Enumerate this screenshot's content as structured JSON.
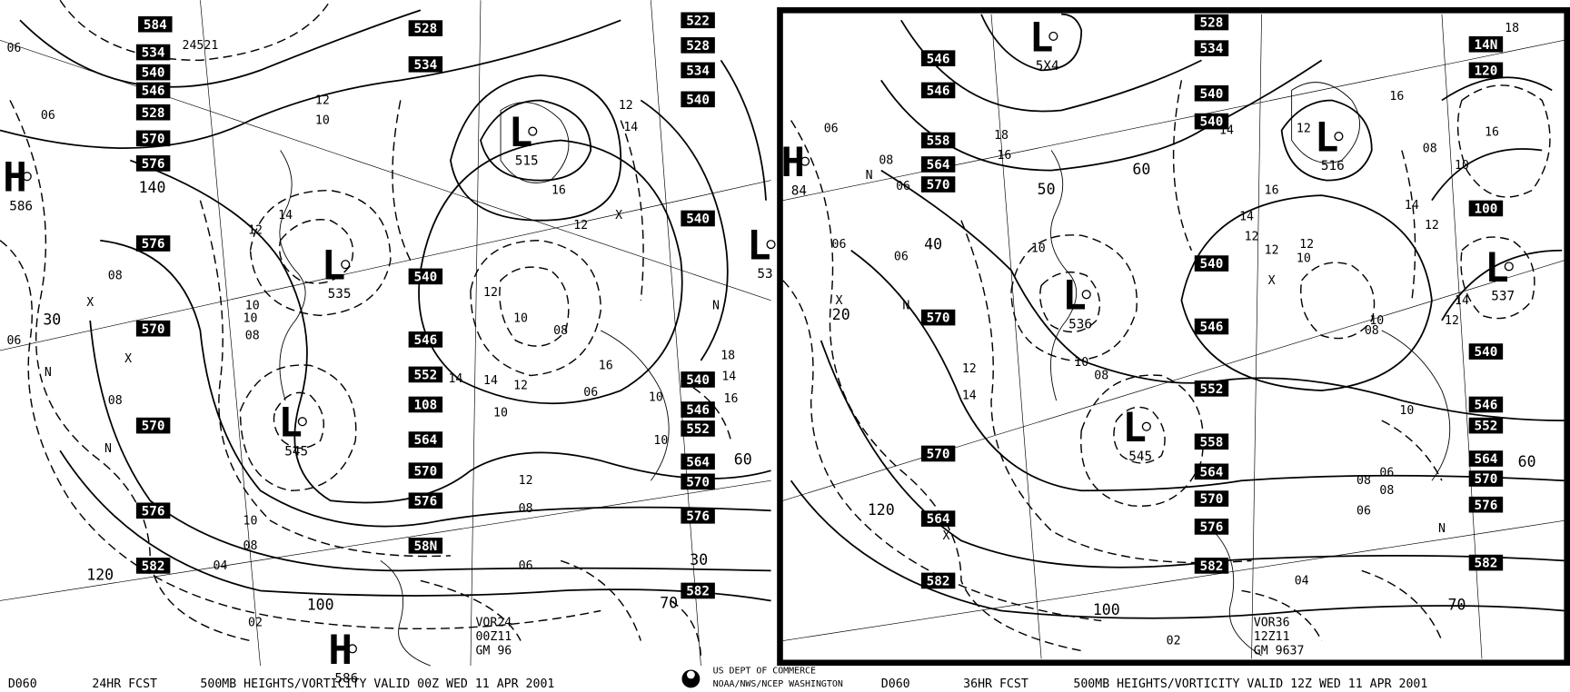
{
  "left_panel": {
    "height_labels": [
      "584",
      "534",
      "540",
      "546",
      "528",
      "570",
      "576",
      "576",
      "570",
      "570",
      "576",
      "582",
      "528",
      "534",
      "522",
      "528",
      "534",
      "540",
      "540",
      "540",
      "546",
      "552",
      "108",
      "564",
      "570",
      "576",
      "58N",
      "540",
      "546",
      "552",
      "564",
      "570",
      "576",
      "582"
    ],
    "centers": [
      {
        "symbol": "H",
        "value": "586"
      },
      {
        "symbol": "L",
        "value": "535"
      },
      {
        "symbol": "L",
        "value": "515"
      },
      {
        "symbol": "L",
        "value": "545"
      },
      {
        "symbol": "L",
        "value": "53"
      },
      {
        "symbol": "H",
        "value": "586"
      }
    ],
    "small_labels": [
      "06",
      "06",
      "08",
      "06",
      "08",
      "10",
      "12",
      "10",
      "08",
      "14",
      "12",
      "10",
      "14",
      "16",
      "12",
      "14",
      "16",
      "12",
      "10",
      "08",
      "10",
      "12",
      "14",
      "12",
      "10",
      "08",
      "06",
      "04",
      "02",
      "X",
      "X",
      "N",
      "N",
      "X",
      "N",
      "18",
      "16",
      "14",
      "10",
      "06",
      "08",
      "10",
      "12",
      "24521"
    ],
    "isotach_labels": [
      "140",
      "120",
      "100",
      "30",
      "70",
      "60",
      "30"
    ],
    "stamp": [
      "VOR24",
      "00Z11",
      "GM 96"
    ]
  },
  "right_panel": {
    "height_labels": [
      "528",
      "534",
      "546",
      "546",
      "558",
      "564",
      "570",
      "540",
      "540",
      "540",
      "546",
      "552",
      "558",
      "564",
      "570",
      "576",
      "582",
      "570",
      "570",
      "564",
      "582",
      "14N",
      "120",
      "100",
      "540",
      "546",
      "552",
      "564",
      "570",
      "576",
      "582"
    ],
    "centers": [
      {
        "symbol": "L",
        "value": "5X4"
      },
      {
        "symbol": "L",
        "value": "516"
      },
      {
        "symbol": "L",
        "value": "536"
      },
      {
        "symbol": "L",
        "value": "545"
      },
      {
        "symbol": "L",
        "value": "537"
      },
      {
        "symbol": "H",
        "value": "84"
      }
    ],
    "small_labels": [
      "06",
      "06",
      "08",
      "06",
      "06",
      "10",
      "12",
      "16",
      "14",
      "12",
      "10",
      "08",
      "12",
      "14",
      "16",
      "18",
      "14",
      "12",
      "10",
      "08",
      "12",
      "10",
      "08",
      "06",
      "04",
      "02",
      "X",
      "X",
      "N",
      "N",
      "X",
      "N",
      "16",
      "14",
      "12",
      "10",
      "08",
      "06",
      "08",
      "10",
      "12",
      "14",
      "16",
      "18"
    ],
    "isotach_labels": [
      "60",
      "50",
      "40",
      "20",
      "120",
      "100",
      "70",
      "60"
    ],
    "stamp": [
      "VOR36",
      "12Z11",
      "GM 9637"
    ]
  },
  "footer": {
    "left_code": "D060",
    "left_forecast": "24HR FCST",
    "left_title": "500MB HEIGHTS/VORTICITY VALID 00Z WED 11 APR 2001",
    "agency_line1": "US DEPT OF COMMERCE",
    "agency_line2": "NOAA/NWS/NCEP WASHINGTON",
    "right_code": "D060",
    "right_forecast": "36HR FCST",
    "right_title": "500MB HEIGHTS/VORTICITY VALID 12Z WED 11 APR 2001"
  }
}
